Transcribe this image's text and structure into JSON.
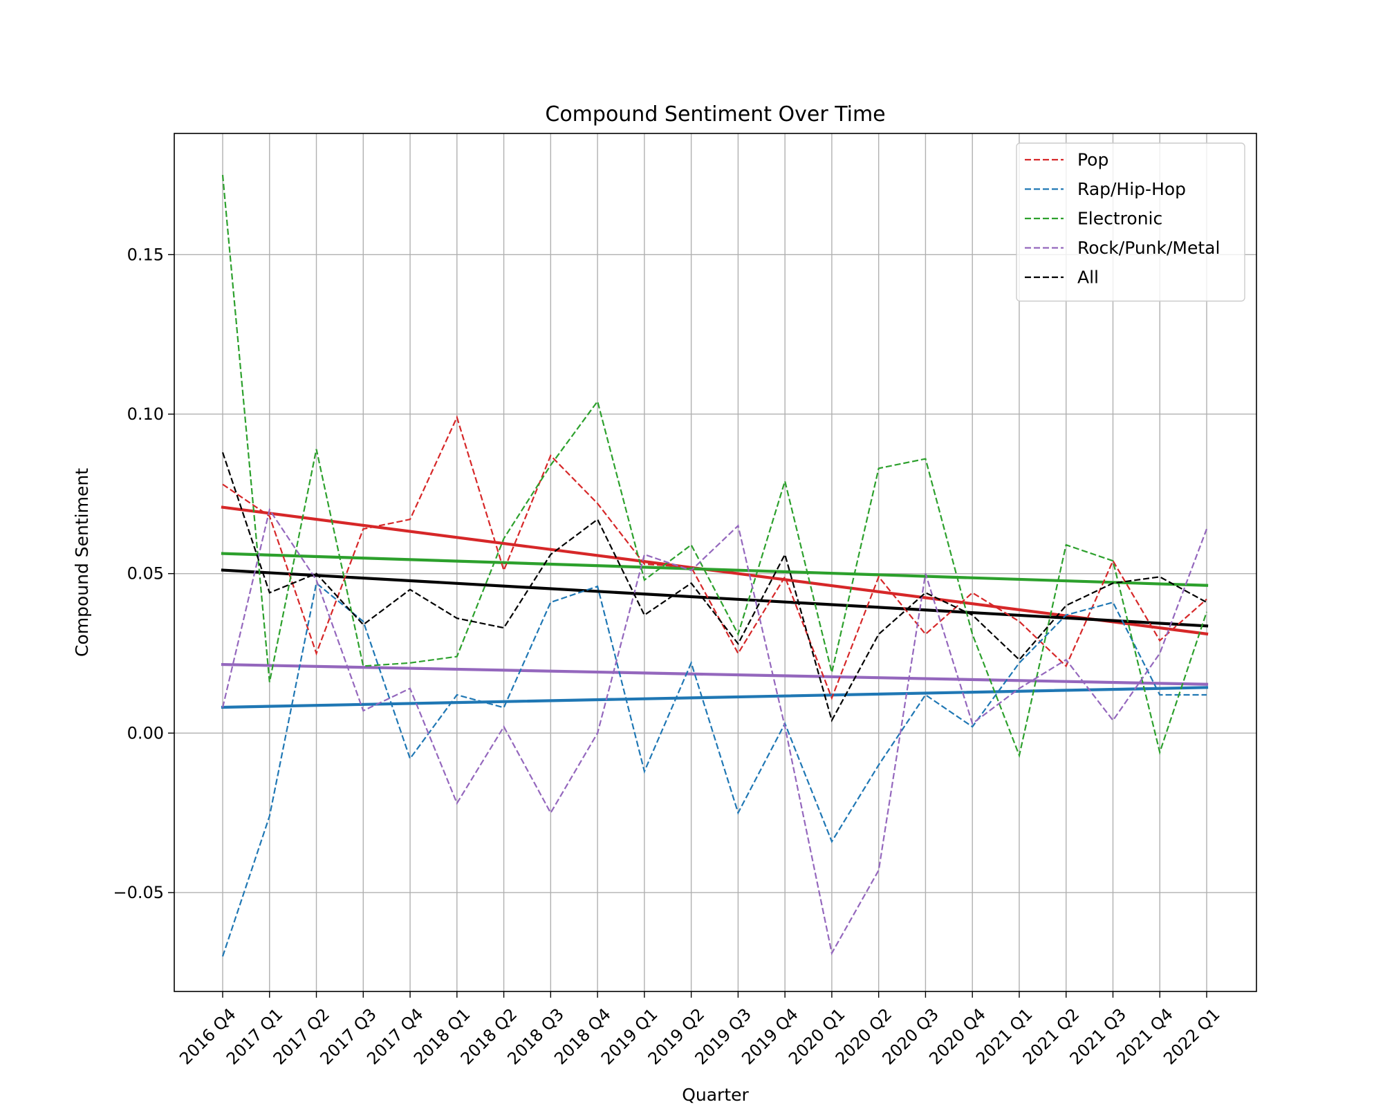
{
  "chart_data": {
    "type": "line",
    "title": "Compound Sentiment Over Time",
    "xlabel": "Quarter",
    "ylabel": "Compound Sentiment",
    "ylim": [
      -0.081,
      0.188
    ],
    "yticks": [
      -0.05,
      0.0,
      0.05,
      0.1,
      0.15
    ],
    "ytick_labels": [
      "−0.05",
      "0.00",
      "0.05",
      "0.10",
      "0.15"
    ],
    "grid": true,
    "legend_position": "top-right",
    "categories": [
      "2016 Q4",
      "2017 Q1",
      "2017 Q2",
      "2017 Q3",
      "2017 Q4",
      "2018 Q1",
      "2018 Q2",
      "2018 Q3",
      "2018 Q4",
      "2019 Q1",
      "2019 Q2",
      "2019 Q3",
      "2019 Q4",
      "2020 Q1",
      "2020 Q2",
      "2020 Q3",
      "2020 Q4",
      "2021 Q1",
      "2021 Q2",
      "2021 Q3",
      "2021 Q4",
      "2022 Q1"
    ],
    "series": [
      {
        "name": "Pop",
        "color": "#d62728",
        "values": [
          0.078,
          0.068,
          0.025,
          0.064,
          0.067,
          0.099,
          0.051,
          0.087,
          0.072,
          0.053,
          0.052,
          0.025,
          0.049,
          0.011,
          0.049,
          0.031,
          0.044,
          0.035,
          0.021,
          0.054,
          0.029,
          0.042
        ],
        "trend": [
          0.0708,
          0.0311
        ]
      },
      {
        "name": "Rap/Hip-Hop",
        "color": "#1f77b4",
        "values": [
          -0.07,
          -0.026,
          0.047,
          0.035,
          -0.008,
          0.012,
          0.008,
          0.041,
          0.046,
          -0.012,
          0.022,
          -0.025,
          0.003,
          -0.034,
          -0.01,
          0.012,
          0.002,
          0.022,
          0.037,
          0.041,
          0.012,
          0.012
        ],
        "trend": [
          0.0081,
          0.0143
        ]
      },
      {
        "name": "Electronic",
        "color": "#2ca02c",
        "values": [
          0.175,
          0.016,
          0.089,
          0.021,
          0.022,
          0.024,
          0.061,
          0.084,
          0.104,
          0.048,
          0.059,
          0.031,
          0.079,
          0.019,
          0.083,
          0.086,
          0.031,
          -0.007,
          0.059,
          0.054,
          -0.006,
          0.038
        ],
        "trend": [
          0.0563,
          0.0463
        ]
      },
      {
        "name": "Rock/Punk/Metal",
        "color": "#9467bd",
        "values": [
          0.008,
          0.07,
          0.048,
          0.007,
          0.014,
          -0.022,
          0.002,
          -0.025,
          0.0,
          0.056,
          0.051,
          0.065,
          0.002,
          -0.069,
          -0.043,
          0.05,
          0.003,
          0.014,
          0.023,
          0.004,
          0.025,
          0.064
        ],
        "trend": [
          0.0215,
          0.0153
        ]
      },
      {
        "name": "All",
        "color": "#000000",
        "values": [
          0.088,
          0.044,
          0.05,
          0.034,
          0.045,
          0.036,
          0.033,
          0.056,
          0.067,
          0.037,
          0.047,
          0.028,
          0.056,
          0.004,
          0.031,
          0.044,
          0.037,
          0.023,
          0.04,
          0.047,
          0.049,
          0.041
        ],
        "trend": [
          0.0511,
          0.0336
        ]
      }
    ]
  }
}
